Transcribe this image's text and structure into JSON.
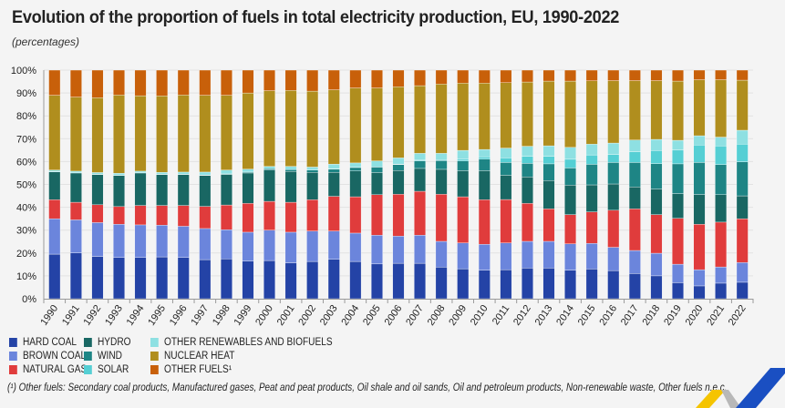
{
  "chart_data": {
    "type": "bar",
    "stacked": true,
    "title": "Evolution of the proportion of fuels in total electricity production, EU, 1990-2022",
    "subtitle": "(percentages)",
    "xlabel": "",
    "ylabel": "",
    "ylim": [
      0,
      100
    ],
    "y_ticks": [
      "0%",
      "10%",
      "20%",
      "30%",
      "40%",
      "50%",
      "60%",
      "70%",
      "80%",
      "90%",
      "100%"
    ],
    "grid": true,
    "legend_position": "bottom-left",
    "categories": [
      "1990",
      "1991",
      "1992",
      "1993",
      "1994",
      "1995",
      "1996",
      "1997",
      "1998",
      "1999",
      "2000",
      "2001",
      "2002",
      "2003",
      "2004",
      "2005",
      "2006",
      "2007",
      "2008",
      "2009",
      "2010",
      "2011",
      "2012",
      "2013",
      "2014",
      "2015",
      "2016",
      "2017",
      "2018",
      "2019",
      "2020",
      "2021",
      "2022"
    ],
    "series": [
      {
        "name": "HARD COAL",
        "color": "#2443a6",
        "values": [
          19.5,
          20.0,
          18.5,
          18.0,
          18.0,
          18.3,
          18.0,
          17.1,
          17.4,
          16.5,
          16.7,
          15.7,
          16.3,
          17.2,
          16.3,
          15.2,
          15.5,
          15.5,
          13.8,
          13.1,
          12.5,
          12.7,
          13.4,
          13.4,
          12.5,
          13.0,
          12.3,
          11.0,
          10.0,
          7.0,
          5.6,
          6.8,
          7.2
        ]
      },
      {
        "name": "BROWN COAL",
        "color": "#6b85dc",
        "values": [
          15.5,
          14.5,
          14.8,
          14.6,
          14.3,
          13.9,
          13.7,
          13.6,
          12.8,
          12.6,
          13.3,
          13.4,
          13.3,
          12.4,
          12.4,
          12.6,
          11.9,
          12.3,
          11.3,
          11.3,
          11.3,
          11.7,
          11.7,
          11.7,
          11.5,
          11.2,
          10.2,
          10.1,
          9.9,
          8.1,
          7.1,
          7.1,
          8.6
        ]
      },
      {
        "name": "NATURAL GAS",
        "color": "#e03c3c",
        "values": [
          8.3,
          7.7,
          7.8,
          7.7,
          8.5,
          8.6,
          9.1,
          9.7,
          10.8,
          12.6,
          12.6,
          13.1,
          13.7,
          15.2,
          15.9,
          17.7,
          18.3,
          19.2,
          20.6,
          20.2,
          19.5,
          19.0,
          16.6,
          14.2,
          12.8,
          13.8,
          16.2,
          18.2,
          16.9,
          20.1,
          19.9,
          19.6,
          19.2
        ]
      },
      {
        "name": "HYDRO",
        "color": "#196763",
        "values": [
          12.2,
          12.8,
          13.2,
          13.6,
          14.2,
          13.5,
          13.5,
          13.5,
          13.3,
          13.3,
          13.7,
          13.5,
          12.0,
          10.5,
          11.3,
          9.7,
          10.4,
          10.0,
          10.9,
          11.4,
          12.7,
          10.6,
          11.6,
          12.4,
          12.9,
          11.8,
          11.5,
          9.6,
          11.2,
          10.8,
          13.0,
          12.0,
          10.0
        ]
      },
      {
        "name": "WIND",
        "color": "#1e8585",
        "values": [
          0.1,
          0.1,
          0.1,
          0.1,
          0.1,
          0.1,
          0.1,
          0.2,
          0.3,
          0.4,
          0.6,
          0.8,
          1.0,
          1.4,
          1.5,
          2.4,
          2.6,
          3.3,
          3.8,
          4.3,
          5.1,
          5.6,
          5.9,
          7.3,
          7.5,
          9.0,
          9.4,
          10.7,
          11.1,
          13.0,
          14.0,
          13.2,
          14.9
        ]
      },
      {
        "name": "SOLAR",
        "color": "#55cfd4",
        "values": [
          0.0,
          0.0,
          0.0,
          0.0,
          0.0,
          0.0,
          0.0,
          0.0,
          0.0,
          0.0,
          0.0,
          0.0,
          0.0,
          0.1,
          0.1,
          0.1,
          0.2,
          0.3,
          0.4,
          0.7,
          1.0,
          2.0,
          3.1,
          3.3,
          3.8,
          4.1,
          3.5,
          4.7,
          5.7,
          6.0,
          7.6,
          8.1,
          7.7
        ]
      },
      {
        "name": "OTHER RENEWABLES AND BIOFUELS",
        "color": "#8ee0e2",
        "values": [
          0.7,
          0.7,
          0.8,
          0.9,
          0.7,
          0.9,
          1.0,
          1.3,
          1.7,
          1.3,
          1.0,
          1.4,
          1.3,
          2.1,
          1.9,
          2.6,
          2.7,
          3.0,
          2.8,
          3.9,
          3.2,
          4.3,
          4.4,
          4.6,
          5.2,
          4.7,
          5.0,
          5.1,
          4.9,
          4.3,
          4.1,
          3.9,
          6.1
        ]
      },
      {
        "name": "NUCLEAR HEAT",
        "color": "#b08e1e",
        "values": [
          32.7,
          32.4,
          32.7,
          34.2,
          33.0,
          33.4,
          33.7,
          33.6,
          32.7,
          33.3,
          33.1,
          33.2,
          33.2,
          32.5,
          32.8,
          31.9,
          31.1,
          29.6,
          30.3,
          29.4,
          29.0,
          28.6,
          28.1,
          28.3,
          29.0,
          27.7,
          27.3,
          26.0,
          25.7,
          25.9,
          24.5,
          25.1,
          21.9
        ]
      },
      {
        "name": "OTHER FUELS¹",
        "color": "#c8600a",
        "values": [
          11.0,
          11.8,
          12.1,
          10.9,
          11.2,
          11.3,
          10.9,
          11.0,
          11.0,
          10.0,
          9.0,
          8.9,
          9.2,
          8.6,
          7.8,
          7.8,
          7.3,
          6.8,
          6.1,
          5.7,
          5.7,
          5.5,
          5.2,
          4.8,
          4.8,
          4.7,
          4.6,
          4.6,
          4.6,
          4.8,
          4.2,
          4.2,
          4.4
        ]
      }
    ]
  },
  "legend": [
    {
      "label": "HARD COAL",
      "color": "#2443a6"
    },
    {
      "label": "BROWN COAL",
      "color": "#6b85dc"
    },
    {
      "label": "NATURAL GAS",
      "color": "#e03c3c"
    },
    {
      "label": "HYDRO",
      "color": "#196763"
    },
    {
      "label": "WIND",
      "color": "#1e8585"
    },
    {
      "label": "SOLAR",
      "color": "#55cfd4"
    },
    {
      "label": "OTHER RENEWABLES AND BIOFUELS",
      "color": "#8ee0e2"
    },
    {
      "label": "NUCLEAR HEAT",
      "color": "#b08e1e"
    },
    {
      "label": "OTHER FUELS¹",
      "color": "#c8600a"
    }
  ],
  "footnote": "(¹) Other fuels: Secondary coal products, Manufactured gases, Peat and peat products, Oil shale and oil sands, Oil and petroleum products, Non-renewable waste, Other fuels n.e.c.",
  "logo": {
    "name": "eurostat-logo",
    "colors": [
      "#f5c400",
      "#1a4fc2",
      "#b8b8b8"
    ]
  }
}
